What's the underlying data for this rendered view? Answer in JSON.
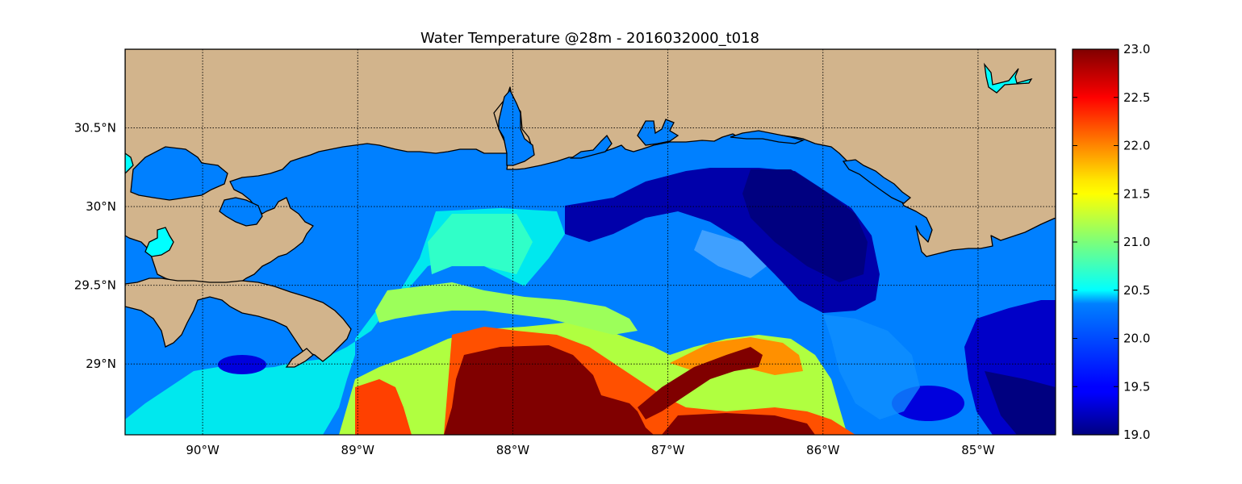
{
  "title": "Water Temperature @28m - 2016032000_t018",
  "map": {
    "lon_range": [
      -90.5,
      -84.5
    ],
    "lat_range": [
      28.55,
      31.0
    ],
    "lon_ticks": [
      {
        "value": -90,
        "label": "90°W"
      },
      {
        "value": -89,
        "label": "89°W"
      },
      {
        "value": -88,
        "label": "88°W"
      },
      {
        "value": -87,
        "label": "87°W"
      },
      {
        "value": -86,
        "label": "86°W"
      },
      {
        "value": -85,
        "label": "85°W"
      }
    ],
    "lat_ticks": [
      {
        "value": 30.5,
        "label": "30.5°N"
      },
      {
        "value": 30.0,
        "label": "30°N"
      },
      {
        "value": 29.5,
        "label": "29.5°N"
      },
      {
        "value": 29.0,
        "label": "29°N"
      }
    ],
    "grid": true,
    "land_color": "#d2b48c",
    "inland_water_color": "#00ffff",
    "background_water_color": "#0080ff"
  },
  "colorbar": {
    "min": 19.0,
    "max": 23.0,
    "colormap": "jet",
    "ticks": [
      "19.0",
      "19.5",
      "20.0",
      "20.5",
      "21.0",
      "21.5",
      "22.0",
      "22.5",
      "23.0"
    ]
  }
}
